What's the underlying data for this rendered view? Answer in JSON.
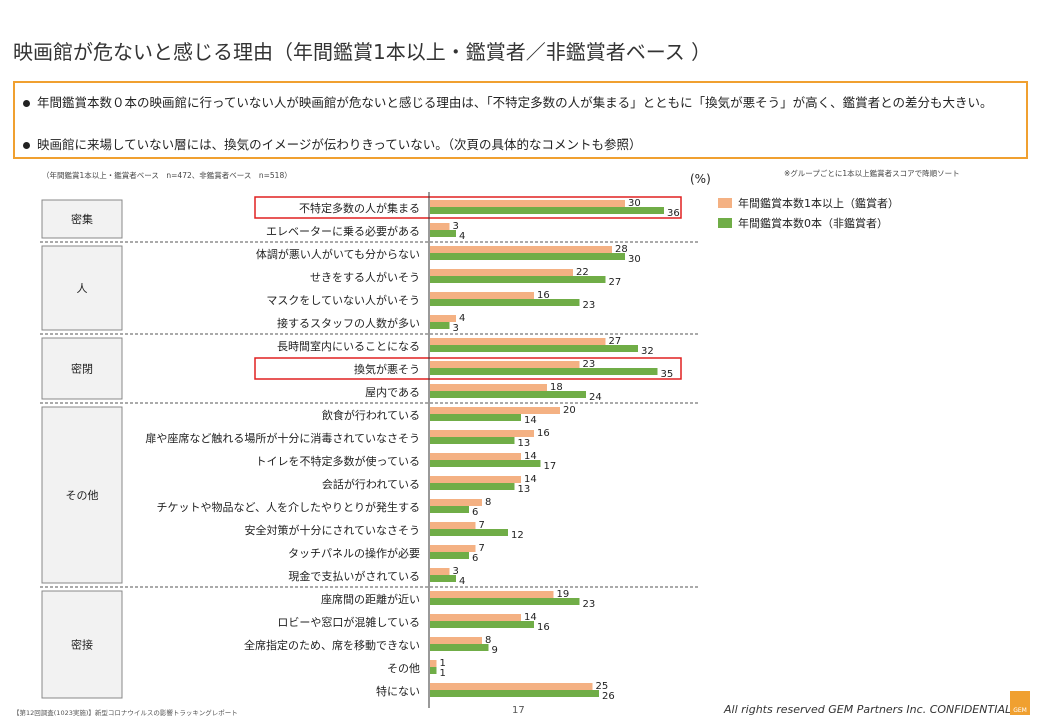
{
  "title": "映画館が危ないと感じる理由（年間鑑賞1本以上・鑑賞者／非鑑賞者ベース ）",
  "summary": [
    "年間鑑賞本数０本の映画館に行っていない人が映画館が危ないと感じる理由は、「不特定多数の人が集まる」とともに「換気が悪そう」が高く、鑑賞者との差分も大きい。",
    "映画館に来場していない層には、換気のイメージが伝わりきっていない。（次頁の具体的なコメントも参照）"
  ],
  "note_left": "（年間鑑賞1本以上・鑑賞者ベース　n=472、非鑑賞者ベース　n=518）",
  "note_right": "※グループごとに1本以上鑑賞者スコアで降順ソート",
  "unit": "(%)",
  "colors": {
    "series1": "#f4b183",
    "series2": "#70ad47",
    "highlight": "#e02020",
    "group_border": "#888888"
  },
  "chart_data": {
    "type": "bar",
    "orientation": "horizontal",
    "categories": [
      "不特定多数の人が集まる",
      "エレベーターに乗る必要がある",
      "体調が悪い人がいても分からない",
      "せきをする人がいそう",
      "マスクをしていない人がいそう",
      "接するスタッフの人数が多い",
      "長時間室内にいることになる",
      "換気が悪そう",
      "屋内である",
      "飲食が行われている",
      "扉や座席など触れる場所が十分に消毒されていなさそう",
      "トイレを不特定多数が使っている",
      "会話が行われている",
      "チケットや物品など、人を介したやりとりが発生する",
      "安全対策が十分にされていなさそう",
      "タッチパネルの操作が必要",
      "現金で支払いがされている",
      "座席間の距離が近い",
      "ロビーや窓口が混雑している",
      "全席指定のため、席を移動できない",
      "その他",
      "特にない"
    ],
    "series": [
      {
        "name": "年間鑑賞本数1本以上（鑑賞者）",
        "values": [
          30,
          3,
          28,
          22,
          16,
          4,
          27,
          23,
          18,
          20,
          16,
          14,
          14,
          8,
          7,
          7,
          3,
          19,
          14,
          8,
          1,
          25
        ]
      },
      {
        "name": "年間鑑賞本数0本（非鑑賞者）",
        "values": [
          36,
          4,
          30,
          27,
          23,
          3,
          32,
          35,
          24,
          14,
          13,
          17,
          13,
          6,
          12,
          6,
          4,
          23,
          16,
          9,
          1,
          26
        ]
      }
    ],
    "groups": [
      {
        "label": "密集",
        "start": 0,
        "end": 1
      },
      {
        "label": "人",
        "start": 2,
        "end": 5
      },
      {
        "label": "密閉",
        "start": 6,
        "end": 8
      },
      {
        "label": "その他",
        "start": 9,
        "end": 16
      },
      {
        "label": "密接",
        "start": 17,
        "end": 21
      }
    ],
    "highlighted": [
      0,
      7
    ],
    "xlim": [
      0,
      40
    ],
    "legend_position": "top-right"
  },
  "footer_left": "【第12回調査(1023実施)】新型コロナウイルスの影響トラッキングレポート",
  "page_number": "17",
  "footer_right": "All rights reserved GEM Partners Inc. CONFIDENTIAL",
  "logo_text": "GEM"
}
